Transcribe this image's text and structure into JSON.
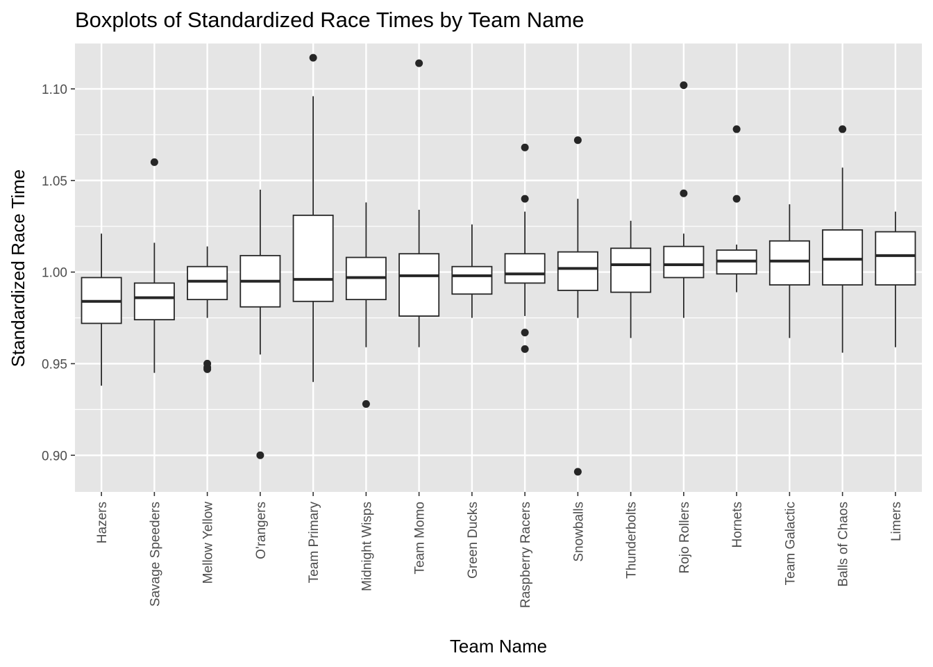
{
  "chart_data": {
    "type": "boxplot",
    "title": "Boxplots of Standardized Race Times by Team Name",
    "xlabel": "Team Name",
    "ylabel": "Standardized Race Time",
    "ylim": [
      0.88,
      1.125
    ],
    "yticks": [
      0.9,
      0.95,
      1.0,
      1.05,
      1.1
    ],
    "ytick_labels": [
      "0.90",
      "0.95",
      "1.00",
      "1.05",
      "1.10"
    ],
    "grid": true,
    "colors": {
      "panel": "#e5e5e5",
      "grid": "#ffffff",
      "box_fill": "#ffffff",
      "stroke": "#262626",
      "outlier": "#262626"
    },
    "categories": [
      "Hazers",
      "Savage Speeders",
      "Mellow Yellow",
      "O'rangers",
      "Team Primary",
      "Midnight Wisps",
      "Team Momo",
      "Green Ducks",
      "Raspberry Racers",
      "Snowballs",
      "Thunderbolts",
      "Rojo Rollers",
      "Hornets",
      "Team Galactic",
      "Balls of Chaos",
      "Limers"
    ],
    "boxes": [
      {
        "min": 0.938,
        "q1": 0.972,
        "median": 0.984,
        "q3": 0.997,
        "max": 1.021,
        "outliers": []
      },
      {
        "min": 0.945,
        "q1": 0.974,
        "median": 0.986,
        "q3": 0.994,
        "max": 1.016,
        "outliers": [
          1.06
        ]
      },
      {
        "min": 0.975,
        "q1": 0.985,
        "median": 0.995,
        "q3": 1.003,
        "max": 1.014,
        "outliers": [
          0.95,
          0.948,
          0.947
        ]
      },
      {
        "min": 0.955,
        "q1": 0.981,
        "median": 0.995,
        "q3": 1.009,
        "max": 1.045,
        "outliers": [
          0.9
        ]
      },
      {
        "min": 0.94,
        "q1": 0.984,
        "median": 0.996,
        "q3": 1.031,
        "max": 1.096,
        "outliers": [
          1.117
        ]
      },
      {
        "min": 0.959,
        "q1": 0.985,
        "median": 0.997,
        "q3": 1.008,
        "max": 1.038,
        "outliers": [
          0.928
        ]
      },
      {
        "min": 0.959,
        "q1": 0.976,
        "median": 0.998,
        "q3": 1.01,
        "max": 1.034,
        "outliers": [
          1.114
        ]
      },
      {
        "min": 0.975,
        "q1": 0.988,
        "median": 0.998,
        "q3": 1.003,
        "max": 1.026,
        "outliers": []
      },
      {
        "min": 0.976,
        "q1": 0.994,
        "median": 0.999,
        "q3": 1.01,
        "max": 1.033,
        "outliers": [
          1.068,
          1.04,
          0.967,
          0.958
        ]
      },
      {
        "min": 0.975,
        "q1": 0.99,
        "median": 1.002,
        "q3": 1.011,
        "max": 1.04,
        "outliers": [
          1.072,
          0.891
        ]
      },
      {
        "min": 0.964,
        "q1": 0.989,
        "median": 1.004,
        "q3": 1.013,
        "max": 1.028,
        "outliers": []
      },
      {
        "min": 0.975,
        "q1": 0.997,
        "median": 1.004,
        "q3": 1.014,
        "max": 1.021,
        "outliers": [
          1.102,
          1.043
        ]
      },
      {
        "min": 0.989,
        "q1": 0.999,
        "median": 1.006,
        "q3": 1.012,
        "max": 1.015,
        "outliers": [
          1.078,
          1.04
        ]
      },
      {
        "min": 0.964,
        "q1": 0.993,
        "median": 1.006,
        "q3": 1.017,
        "max": 1.037,
        "outliers": []
      },
      {
        "min": 0.956,
        "q1": 0.993,
        "median": 1.007,
        "q3": 1.023,
        "max": 1.057,
        "outliers": [
          1.078
        ]
      },
      {
        "min": 0.959,
        "q1": 0.993,
        "median": 1.009,
        "q3": 1.022,
        "max": 1.033,
        "outliers": []
      }
    ]
  }
}
